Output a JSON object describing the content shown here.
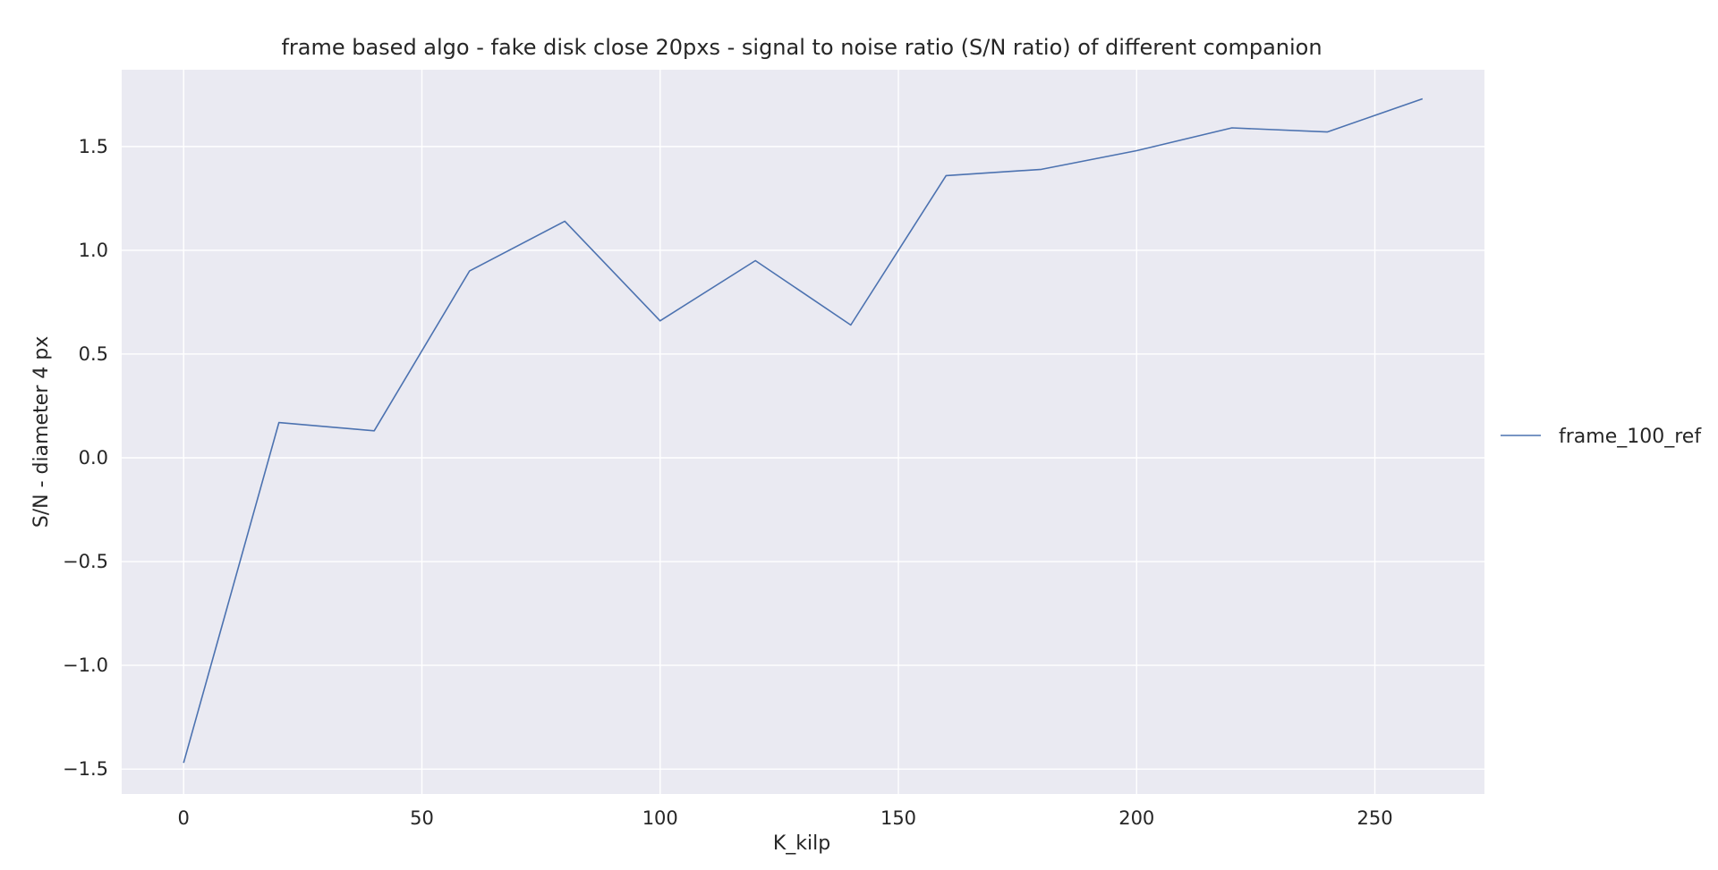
{
  "chart_data": {
    "type": "line",
    "title": "frame based algo - fake disk close 20pxs - signal to noise ratio (S/N ratio) of different companion",
    "xlabel": "K_kilp",
    "ylabel": "S/N - diameter 4 px",
    "xlim": [
      -13,
      273
    ],
    "ylim": [
      -1.62,
      1.87
    ],
    "xticks": [
      0,
      50,
      100,
      150,
      200,
      250
    ],
    "xtick_labels": [
      "0",
      "50",
      "100",
      "150",
      "200",
      "250"
    ],
    "yticks": [
      -1.5,
      -1.0,
      -0.5,
      0.0,
      0.5,
      1.0,
      1.5
    ],
    "ytick_labels": [
      "−1.5",
      "−1.0",
      "−0.5",
      "0.0",
      "0.5",
      "1.0",
      "1.5"
    ],
    "grid": true,
    "legend_position": "right outside",
    "series": [
      {
        "name": "frame_100_ref",
        "color": "#4c72b0",
        "x": [
          0,
          20,
          40,
          60,
          80,
          100,
          120,
          140,
          160,
          180,
          200,
          220,
          240,
          260
        ],
        "y": [
          -1.47,
          0.17,
          0.13,
          0.9,
          1.14,
          0.66,
          0.95,
          0.64,
          1.36,
          1.39,
          1.48,
          1.59,
          1.57,
          1.73
        ]
      }
    ],
    "colors": {
      "plot_background": "#eaeaf2",
      "grid": "#ffffff",
      "text": "#262626"
    }
  }
}
